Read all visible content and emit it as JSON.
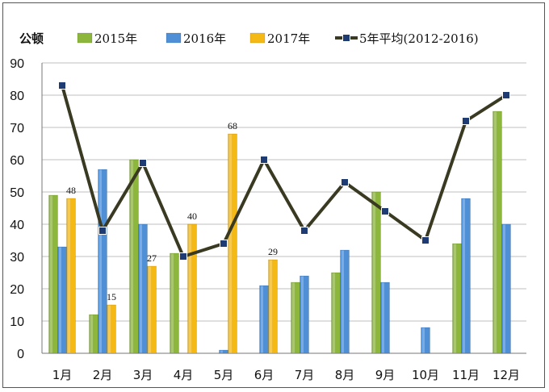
{
  "chart_data": {
    "type": "bar",
    "unit_label": "公顿",
    "categories": [
      "1月",
      "2月",
      "3月",
      "4月",
      "5月",
      "6月",
      "7月",
      "8月",
      "9月",
      "10月",
      "11月",
      "12月"
    ],
    "y_ticks": [
      "0",
      "10",
      "20",
      "30",
      "40",
      "50",
      "60",
      "70",
      "80",
      "90"
    ],
    "ylim": [
      0,
      90
    ],
    "grid": true,
    "legend_position": "top",
    "series": [
      {
        "name": "2015年",
        "kind": "bar",
        "color": "#8DB63C",
        "values": [
          49,
          12,
          60,
          31,
          0,
          0,
          22,
          25,
          50,
          0,
          34,
          75
        ]
      },
      {
        "name": "2016年",
        "kind": "bar",
        "color": "#4F8FD6",
        "values": [
          33,
          57,
          40,
          0,
          1,
          21,
          24,
          32,
          22,
          8,
          48,
          40
        ]
      },
      {
        "name": "2017年",
        "kind": "bar",
        "color": "#F5B915",
        "values": [
          48,
          15,
          27,
          40,
          68,
          29,
          null,
          null,
          null,
          null,
          null,
          null
        ]
      },
      {
        "name": "5年平均(2012-2016)",
        "kind": "line",
        "color": "#3A3A22",
        "marker_color": "#1F3B73",
        "values": [
          83,
          38,
          59,
          30,
          34,
          60,
          38,
          53,
          44,
          35,
          72,
          80
        ]
      }
    ],
    "data_labels": [
      {
        "series": "2017年",
        "index": 0,
        "text": "48"
      },
      {
        "series": "2017年",
        "index": 1,
        "text": "15"
      },
      {
        "series": "2017年",
        "index": 2,
        "text": "27"
      },
      {
        "series": "2017年",
        "index": 3,
        "text": "40"
      },
      {
        "series": "2017年",
        "index": 4,
        "text": "68"
      },
      {
        "series": "2017年",
        "index": 5,
        "text": "29"
      }
    ]
  }
}
